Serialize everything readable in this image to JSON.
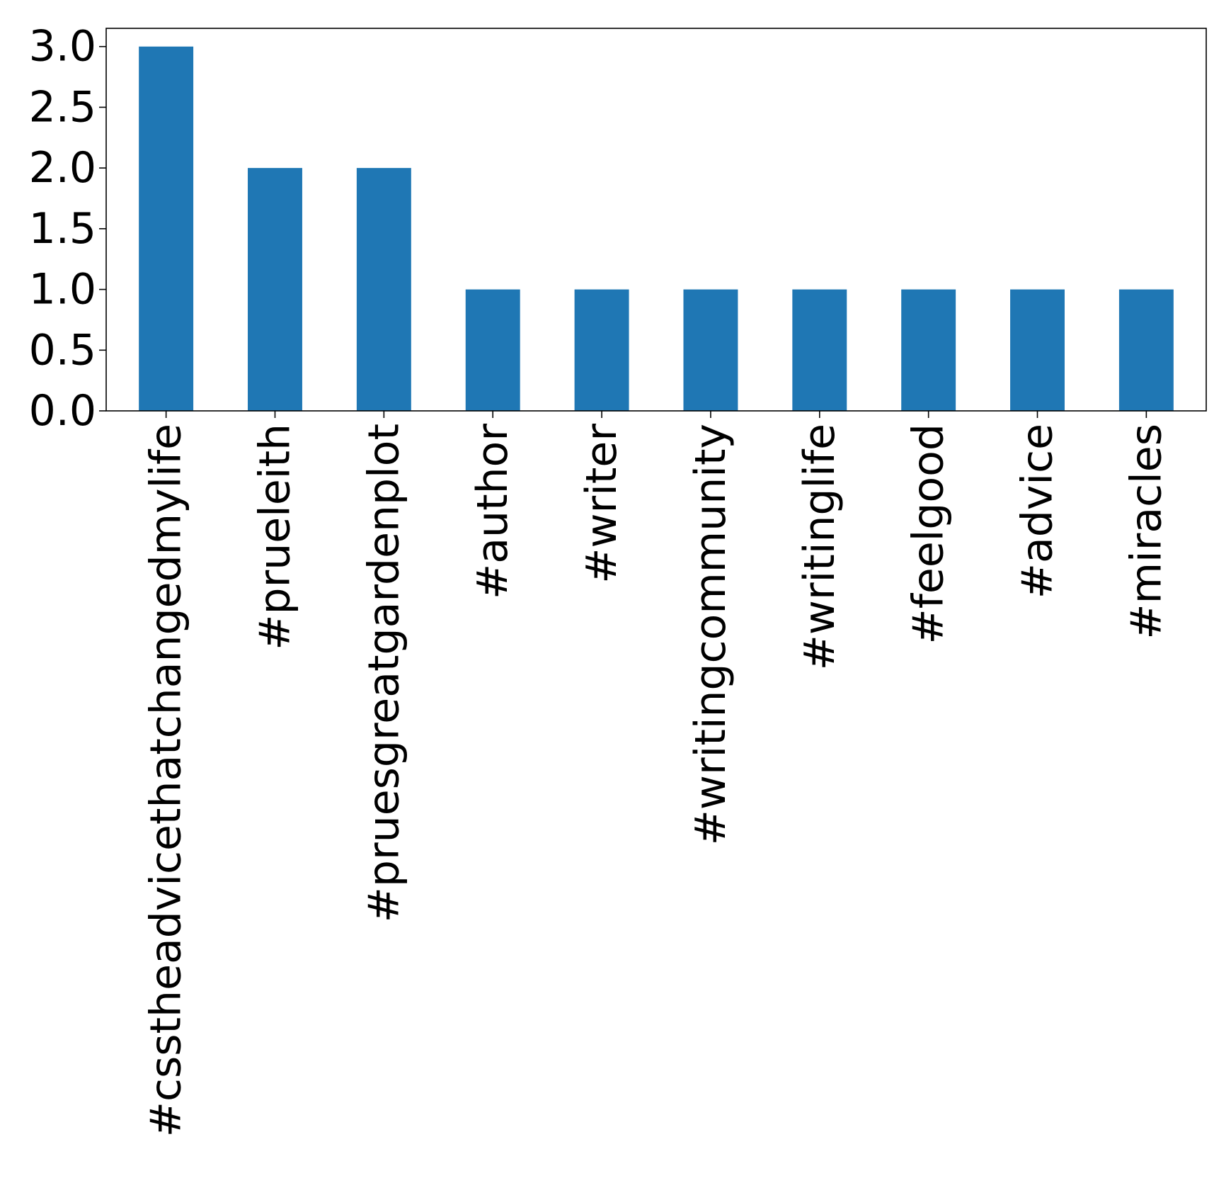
{
  "chart_data": {
    "type": "bar",
    "title": "",
    "xlabel": "",
    "ylabel": "",
    "categories": [
      "#csstheadvicethatchangedmylife",
      "#prueleith",
      "#pruesgreatgardenplot",
      "#author",
      "#writer",
      "#writingcommunity",
      "#writinglife",
      "#feelgood",
      "#advice",
      "#miracles"
    ],
    "values": [
      3,
      2,
      2,
      1,
      1,
      1,
      1,
      1,
      1,
      1
    ],
    "ylim": [
      0,
      3.15
    ],
    "yticks": [
      "0.0",
      "0.5",
      "1.0",
      "1.5",
      "2.0",
      "2.5",
      "3.0"
    ],
    "bar_color": "#1f77b4",
    "grid": false,
    "legend": "none",
    "x_tick_rotation": "vertical"
  }
}
